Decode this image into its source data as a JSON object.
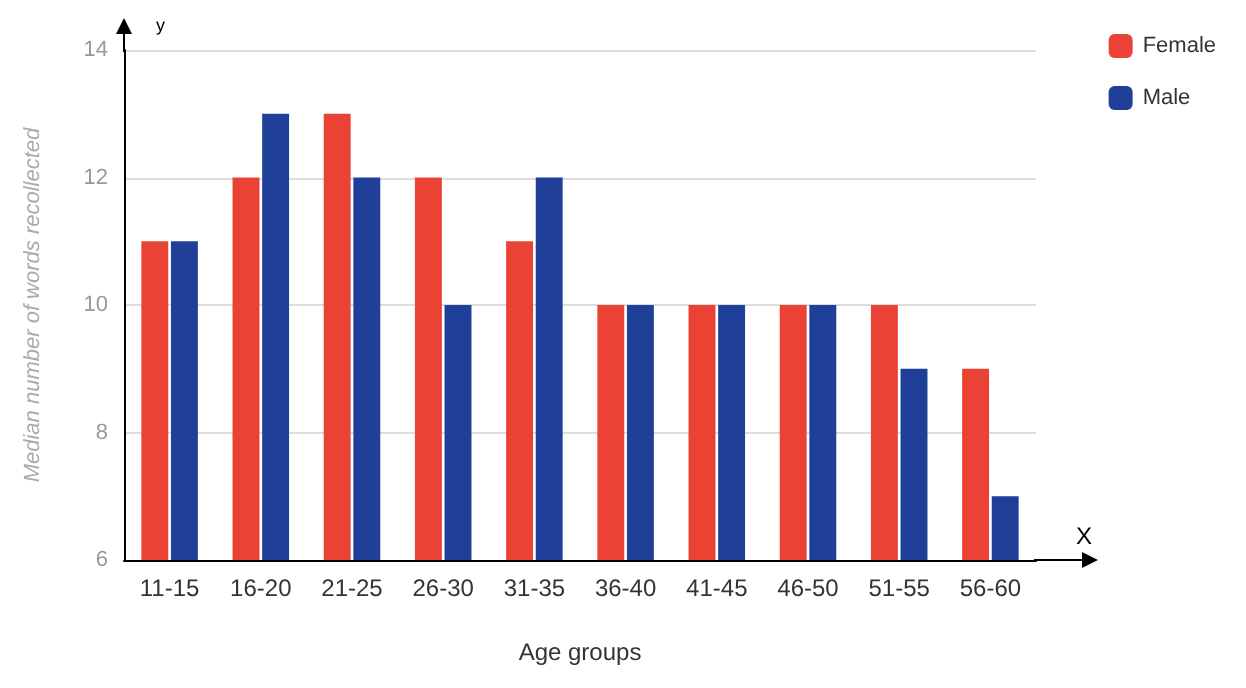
{
  "chart_data": {
    "type": "bar",
    "xlabel": "Age groups",
    "ylabel": "Median number of words recollected",
    "categories": [
      "11-15",
      "16-20",
      "21-25",
      "26-30",
      "31-35",
      "36-40",
      "41-45",
      "46-50",
      "51-55",
      "56-60"
    ],
    "series": [
      {
        "name": "Female",
        "color": "#ea4335",
        "values": [
          11,
          12,
          13,
          12,
          11,
          10,
          10,
          10,
          10,
          9
        ]
      },
      {
        "name": "Male",
        "color": "#1f3f98",
        "values": [
          11,
          13,
          12,
          10,
          12,
          10,
          10,
          10,
          9,
          7
        ]
      }
    ],
    "ylim": [
      6,
      14
    ],
    "yticks": [
      6,
      8,
      10,
      12,
      14
    ],
    "grid": "y",
    "legend": "top right",
    "annotations": [
      "y",
      "X"
    ]
  }
}
